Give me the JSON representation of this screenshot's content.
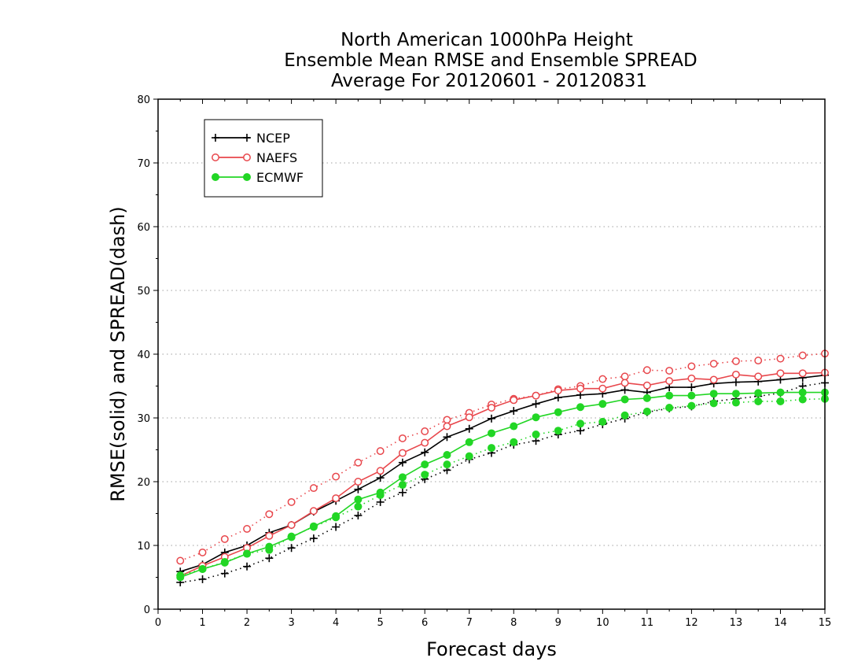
{
  "chart_data": {
    "type": "line",
    "title": [
      "North American 1000hPa Height",
      "Ensemble Mean RMSE and Ensemble SPREAD",
      "Average For 20120601 - 20120831"
    ],
    "xlabel": "Forecast days",
    "ylabel": "RMSE(solid) and SPREAD(dash)",
    "xlim": [
      0,
      15
    ],
    "ylim": [
      0,
      80
    ],
    "xticks": [
      0,
      1,
      2,
      3,
      4,
      5,
      6,
      7,
      8,
      9,
      10,
      11,
      12,
      13,
      14,
      15
    ],
    "yticks": [
      0,
      10,
      20,
      30,
      40,
      50,
      60,
      70,
      80
    ],
    "grid": "horizontal dotted",
    "legend_position": "top-left",
    "x": [
      0.5,
      1,
      1.5,
      2,
      2.5,
      3,
      3.5,
      4,
      4.5,
      5,
      5.5,
      6,
      6.5,
      7,
      7.5,
      8,
      8.5,
      9,
      9.5,
      10,
      10.5,
      11,
      11.5,
      12,
      12.5,
      13,
      13.5,
      14,
      14.5,
      15
    ],
    "series": [
      {
        "name": "NCEP",
        "color": "#000000",
        "marker": "plus",
        "rmse": [
          5.9,
          7.0,
          8.9,
          10.0,
          12.0,
          13.2,
          15.3,
          17.0,
          18.8,
          20.6,
          23.0,
          24.6,
          27.0,
          28.3,
          29.9,
          31.1,
          32.2,
          33.2,
          33.6,
          33.8,
          34.4,
          34.0,
          34.8,
          34.8,
          35.4,
          35.6,
          35.7,
          36.0,
          36.3,
          36.7
        ],
        "spread": [
          4.2,
          4.7,
          5.6,
          6.7,
          8.0,
          9.6,
          11.1,
          12.9,
          14.7,
          16.8,
          18.3,
          20.4,
          21.8,
          23.5,
          24.5,
          25.8,
          26.4,
          27.4,
          28.0,
          29.0,
          29.9,
          30.9,
          31.5,
          31.8,
          32.6,
          33.0,
          33.4,
          33.9,
          35.0,
          35.5
        ]
      },
      {
        "name": "NAEFS",
        "color": "#e8474c",
        "marker": "open-circle",
        "rmse": [
          5.2,
          6.8,
          8.2,
          9.6,
          11.5,
          13.2,
          15.4,
          17.4,
          20.0,
          21.7,
          24.5,
          26.1,
          28.7,
          30.1,
          31.6,
          32.8,
          33.5,
          34.3,
          34.6,
          34.6,
          35.5,
          35.1,
          35.8,
          36.2,
          36.0,
          36.8,
          36.5,
          37.0,
          37.0,
          37.1
        ],
        "spread": [
          7.6,
          8.9,
          11.0,
          12.6,
          14.9,
          16.8,
          19.0,
          20.8,
          23.0,
          24.8,
          26.8,
          27.9,
          29.7,
          30.8,
          32.1,
          33.0,
          33.5,
          34.5,
          35.0,
          36.1,
          36.5,
          37.5,
          37.4,
          38.1,
          38.5,
          38.9,
          39.0,
          39.3,
          39.8,
          40.1
        ]
      },
      {
        "name": "ECMWF",
        "color": "#22d625",
        "marker": "filled-circle",
        "rmse": [
          5.0,
          6.3,
          7.3,
          8.7,
          9.8,
          11.3,
          13.0,
          14.6,
          17.2,
          18.3,
          20.7,
          22.7,
          24.2,
          26.2,
          27.6,
          28.7,
          30.1,
          30.9,
          31.7,
          32.2,
          32.9,
          33.1,
          33.5,
          33.5,
          33.8,
          33.8,
          33.9,
          34.0,
          34.0,
          34.0
        ],
        "spread": [
          5.3,
          6.3,
          7.4,
          8.7,
          9.3,
          11.4,
          12.9,
          14.4,
          16.1,
          17.9,
          19.5,
          21.1,
          22.7,
          24.0,
          25.3,
          26.2,
          27.4,
          28.0,
          29.1,
          29.4,
          30.4,
          31.0,
          31.6,
          31.9,
          32.3,
          32.4,
          32.6,
          32.6,
          32.9,
          33.0
        ]
      }
    ]
  }
}
